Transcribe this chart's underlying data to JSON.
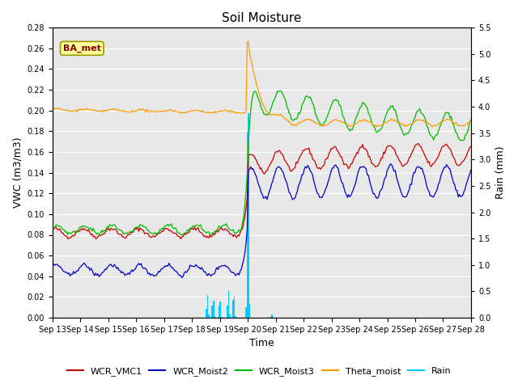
{
  "title": "Soil Moisture",
  "xlabel": "Time",
  "ylabel_left": "VWC (m3/m3)",
  "ylabel_right": "Rain (mm)",
  "ylim_left": [
    0.0,
    0.28
  ],
  "ylim_right": [
    0.0,
    5.5
  ],
  "yticks_left": [
    0.0,
    0.02,
    0.04,
    0.06,
    0.08,
    0.1,
    0.12,
    0.14,
    0.16,
    0.18,
    0.2,
    0.22,
    0.24,
    0.26,
    0.28
  ],
  "yticks_right": [
    0.0,
    0.5,
    1.0,
    1.5,
    2.0,
    2.5,
    3.0,
    3.5,
    4.0,
    4.5,
    5.0,
    5.5
  ],
  "xtick_labels": [
    "Sep 13",
    "Sep 14",
    "Sep 15",
    "Sep 16",
    "Sep 17",
    "Sep 18",
    "Sep 19",
    "Sep 20",
    "Sep 21",
    "Sep 22",
    "Sep 23",
    "Sep 24",
    "Sep 25",
    "Sep 26",
    "Sep 27",
    "Sep 28"
  ],
  "legend_labels": [
    "WCR_VMC1",
    "WCR_Moist2",
    "WCR_Moist3",
    "Theta_moist",
    "Rain"
  ],
  "line_colors": {
    "WCR_VMC1": "#cc0000",
    "WCR_Moist2": "#0000cc",
    "WCR_Moist3": "#00bb00",
    "Theta_moist": "#ff9900",
    "Rain": "#00ccff"
  },
  "annotation_text": "BA_met",
  "annotation_color": "#8b0000",
  "annotation_bgcolor": "#ffff99",
  "annotation_edgecolor": "#999900",
  "plot_bgcolor": "#e8e8e8",
  "title_fontsize": 11,
  "tick_fontsize": 7,
  "label_fontsize": 9
}
